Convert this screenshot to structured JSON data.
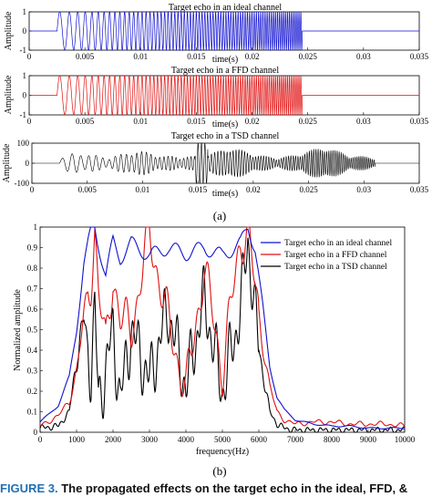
{
  "panel_a_label": "(a)",
  "panel_b_label": "(b)",
  "figure_caption": {
    "label": "FIGURE 3.",
    "text": "The propagated effects on the target echo in the ideal, FFD, &"
  },
  "chart_data": [
    {
      "type": "line",
      "title": "Target echo in an ideal channel",
      "xlabel": "time(s)",
      "ylabel": "Amplitude",
      "xlim": [
        0,
        0.035
      ],
      "ylim": [
        -1,
        1
      ],
      "xticks": [
        "0",
        "0.005",
        "0.01",
        "0.015",
        "0.02",
        "0.025",
        "0.03",
        "0.035"
      ],
      "yticks": [
        "1",
        "0",
        "-1"
      ],
      "series": [
        {
          "color": "#1010d0",
          "signal": "linear chirp",
          "t_start": 0.0025,
          "t_end": 0.0245,
          "amplitude": 1
        }
      ]
    },
    {
      "type": "line",
      "title": "Target echo in a FFD channel",
      "xlabel": "time(s)",
      "ylabel": "Amplitude",
      "xlim": [
        0,
        0.035
      ],
      "ylim": [
        -1,
        1
      ],
      "xticks": [
        "0",
        "0.005",
        "0.01",
        "0.015",
        "0.02",
        "0.025",
        "0.03",
        "0.035"
      ],
      "yticks": [
        "1",
        "0",
        "-1"
      ],
      "series": [
        {
          "color": "#e01010",
          "signal": "linear chirp",
          "t_start": 0.0025,
          "t_end": 0.0245,
          "amplitude": 1
        }
      ]
    },
    {
      "type": "line",
      "title": "Target echo in a TSD channel",
      "xlabel": "time(s)",
      "ylabel": "Amplitude",
      "xlim": [
        0,
        0.035
      ],
      "ylim": [
        -100,
        100
      ],
      "xticks": [
        "0",
        "0.005",
        "0.01",
        "0.015",
        "0.02",
        "0.025",
        "0.03",
        "0.035"
      ],
      "yticks": [
        "100",
        "0",
        "-100"
      ],
      "series": [
        {
          "color": "#000000",
          "signal": "multipath-distorted chirp",
          "t_start": 0.0025,
          "t_end": 0.031,
          "peak": 100
        }
      ]
    },
    {
      "type": "line",
      "title": "",
      "xlabel": "frequency(Hz)",
      "ylabel": "Normalized amplitude",
      "xlim": [
        0,
        10000
      ],
      "ylim": [
        0,
        1
      ],
      "xticks": [
        "0",
        "1000",
        "2000",
        "3000",
        "4000",
        "5000",
        "6000",
        "7000",
        "8000",
        "9000",
        "10000"
      ],
      "yticks": [
        "0",
        "0.1",
        "0.2",
        "0.3",
        "0.4",
        "0.5",
        "0.6",
        "0.7",
        "0.8",
        "0.9",
        "1"
      ],
      "legend": "top-right",
      "x": [
        0,
        500,
        800,
        1000,
        1200,
        1400,
        1500,
        1600,
        1800,
        2000,
        2200,
        2500,
        3000,
        3500,
        4000,
        4500,
        5000,
        5500,
        5700,
        5900,
        6100,
        6300,
        6500,
        6700,
        7000,
        7500,
        8000,
        8500,
        9000,
        9500,
        10000
      ],
      "series": [
        {
          "name": "Target echo in an ideal channel",
          "color": "#1010d0",
          "values": [
            0.05,
            0.13,
            0.27,
            0.5,
            0.82,
            0.98,
            1.0,
            0.92,
            0.76,
            0.93,
            0.85,
            0.92,
            0.86,
            0.9,
            0.87,
            0.9,
            0.86,
            0.92,
            1.0,
            0.9,
            0.62,
            0.32,
            0.17,
            0.11,
            0.06,
            0.04,
            0.03,
            0.03,
            0.02,
            0.02,
            0.02
          ]
        },
        {
          "name": "Target echo in a FFD channel",
          "color": "#e01010",
          "values": [
            0.03,
            0.08,
            0.15,
            0.3,
            0.55,
            0.75,
            1.0,
            0.7,
            0.4,
            0.78,
            0.55,
            0.5,
            0.97,
            0.55,
            0.2,
            0.8,
            0.3,
            0.95,
            0.97,
            0.7,
            0.45,
            0.22,
            0.1,
            0.06,
            0.04,
            0.05,
            0.05,
            0.04,
            0.04,
            0.04,
            0.03
          ]
        },
        {
          "name": "Target echo in a TSD channel",
          "color": "#000000",
          "values": [
            0.02,
            0.03,
            0.1,
            0.35,
            0.55,
            0.3,
            0.6,
            0.15,
            0.3,
            0.5,
            0.15,
            0.5,
            0.25,
            0.6,
            0.22,
            0.65,
            0.2,
            0.6,
            0.95,
            0.55,
            0.3,
            0.1,
            0.04,
            0.02,
            0.01,
            0.01,
            0.01,
            0.01,
            0.01,
            0.01,
            0.01
          ]
        }
      ]
    }
  ]
}
